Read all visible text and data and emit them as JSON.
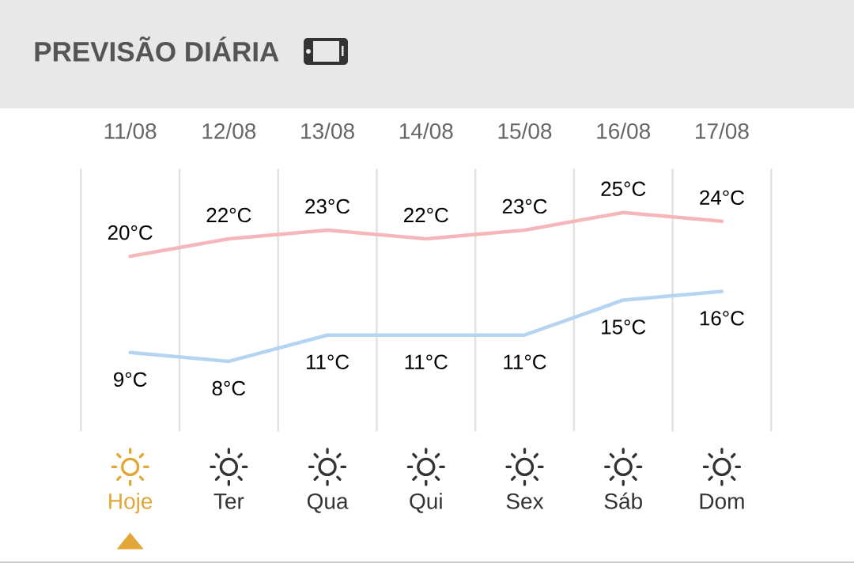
{
  "chart_data": {
    "type": "line",
    "title": "PREVISÃO DIÁRIA",
    "categories": [
      "Hoje",
      "Ter",
      "Qua",
      "Qui",
      "Sex",
      "Sáb",
      "Dom"
    ],
    "series": [
      {
        "color": "#f5b7b9",
        "values": [
          20,
          22,
          23,
          22,
          23,
          25,
          24
        ],
        "value_labels": [
          "20°C",
          "22°C",
          "23°C",
          "22°C",
          "23°C",
          "25°C",
          "24°C"
        ]
      },
      {
        "color": "#b4d4f2",
        "values": [
          9,
          8,
          11,
          11,
          11,
          15,
          16
        ],
        "value_labels": [
          "9°C",
          "8°C",
          "11°C",
          "11°C",
          "11°C",
          "15°C",
          "16°C"
        ]
      }
    ],
    "ylim": [
      0,
      30
    ],
    "grid": "x",
    "tick_labels": "x",
    "line_style": "solid",
    "annotations": [
      "11/08",
      "12/08",
      "13/08",
      "14/08",
      "15/08",
      "16/08",
      "17/08"
    ]
  }
}
